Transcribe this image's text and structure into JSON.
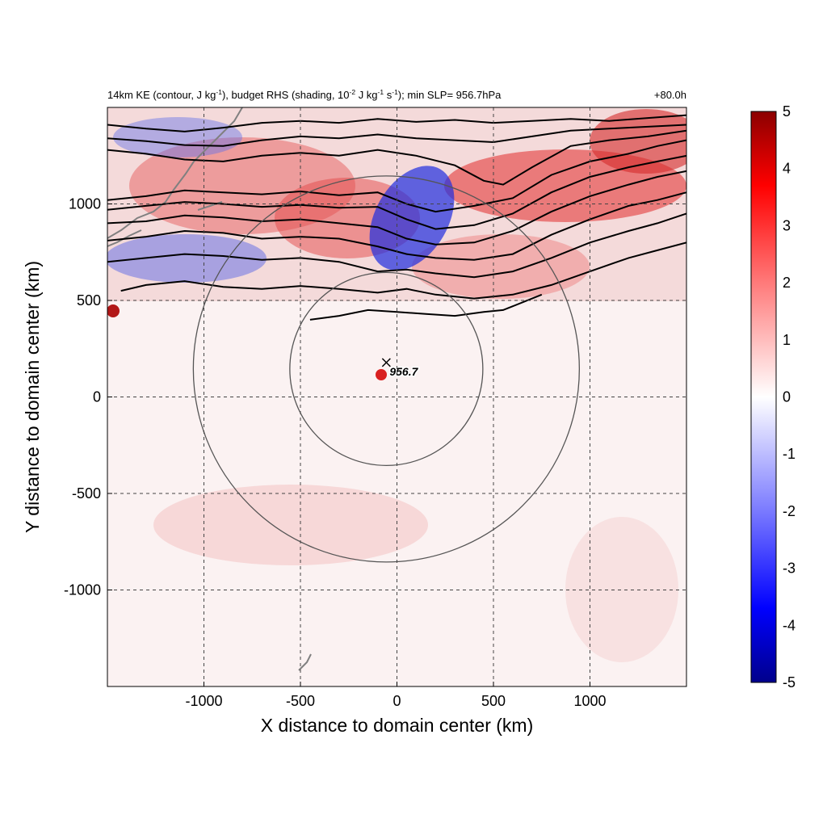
{
  "page": {
    "title": "14km KE contour with kinetic energy budget RHS shading"
  },
  "chart_data": {
    "type": "heatmap",
    "title_parts": [
      {
        "text": "14km KE (contour, J kg",
        "sup": false
      },
      {
        "text": "-1",
        "sup": true
      },
      {
        "text": "), budget RHS (shading, 10",
        "sup": false
      },
      {
        "text": "-2",
        "sup": true
      },
      {
        "text": " J kg",
        "sup": false
      },
      {
        "text": "-1",
        "sup": true
      },
      {
        "text": " s",
        "sup": false
      },
      {
        "text": "-1",
        "sup": true
      },
      {
        "text": "); min SLP= 956.7hPa",
        "sup": false
      }
    ],
    "time_label": "+80.0h",
    "xlabel": "X distance to domain center (km)",
    "ylabel": "Y distance to domain center (km)",
    "xlim": [
      -1500,
      1500
    ],
    "ylim": [
      -1500,
      1500
    ],
    "xticks": [
      -1000,
      -500,
      0,
      500,
      1000
    ],
    "yticks": [
      -1000,
      -500,
      0,
      500,
      1000
    ],
    "grid": true,
    "colorbar": {
      "range": [
        -5,
        5
      ],
      "ticks": [
        5,
        4,
        3,
        2,
        1,
        0,
        -1,
        -2,
        -3,
        -4,
        -5
      ],
      "colors": [
        "#00008b",
        "#0000ff",
        "#ffffff",
        "#ff0000",
        "#8b0000"
      ]
    },
    "storm_center": {
      "x": -55,
      "y": 145,
      "min_slp_label": "956.7"
    },
    "range_rings_km": [
      500,
      1000
    ],
    "ke_contours": [
      {
        "points": [
          [
            -1500,
            1410
          ],
          [
            -1300,
            1390
          ],
          [
            -1100,
            1375
          ],
          [
            -900,
            1395
          ],
          [
            -700,
            1420
          ],
          [
            -500,
            1430
          ],
          [
            -300,
            1420
          ],
          [
            -100,
            1440
          ],
          [
            100,
            1425
          ],
          [
            300,
            1435
          ],
          [
            500,
            1420
          ],
          [
            700,
            1430
          ],
          [
            900,
            1440
          ],
          [
            1100,
            1430
          ],
          [
            1300,
            1445
          ],
          [
            1500,
            1460
          ]
        ]
      },
      {
        "points": [
          [
            -1500,
            1340
          ],
          [
            -1300,
            1325
          ],
          [
            -1100,
            1305
          ],
          [
            -900,
            1300
          ],
          [
            -700,
            1330
          ],
          [
            -500,
            1350
          ],
          [
            -300,
            1340
          ],
          [
            -100,
            1360
          ],
          [
            100,
            1340
          ],
          [
            300,
            1330
          ],
          [
            500,
            1320
          ],
          [
            700,
            1350
          ],
          [
            900,
            1380
          ],
          [
            1100,
            1390
          ],
          [
            1300,
            1400
          ],
          [
            1500,
            1410
          ]
        ]
      },
      {
        "points": [
          [
            -1500,
            1280
          ],
          [
            -1300,
            1260
          ],
          [
            -1100,
            1230
          ],
          [
            -900,
            1220
          ],
          [
            -700,
            1250
          ],
          [
            -500,
            1265
          ],
          [
            -300,
            1250
          ],
          [
            -100,
            1280
          ],
          [
            100,
            1250
          ],
          [
            300,
            1200
          ],
          [
            450,
            1120
          ],
          [
            550,
            1100
          ],
          [
            700,
            1190
          ],
          [
            900,
            1300
          ],
          [
            1100,
            1330
          ],
          [
            1300,
            1350
          ],
          [
            1500,
            1380
          ]
        ]
      },
      {
        "points": [
          [
            -1500,
            1020
          ],
          [
            -1300,
            1040
          ],
          [
            -1100,
            1070
          ],
          [
            -900,
            1060
          ],
          [
            -700,
            1050
          ],
          [
            -500,
            1065
          ],
          [
            -300,
            1045
          ],
          [
            -100,
            1060
          ],
          [
            50,
            1000
          ],
          [
            200,
            960
          ],
          [
            400,
            990
          ],
          [
            600,
            1030
          ],
          [
            800,
            1150
          ],
          [
            1000,
            1220
          ],
          [
            1200,
            1260
          ],
          [
            1350,
            1300
          ],
          [
            1500,
            1330
          ]
        ]
      },
      {
        "points": [
          [
            -1500,
            970
          ],
          [
            -1300,
            990
          ],
          [
            -1100,
            1010
          ],
          [
            -900,
            1000
          ],
          [
            -700,
            985
          ],
          [
            -500,
            995
          ],
          [
            -300,
            980
          ],
          [
            -100,
            985
          ],
          [
            50,
            920
          ],
          [
            200,
            870
          ],
          [
            400,
            890
          ],
          [
            600,
            950
          ],
          [
            800,
            1060
          ],
          [
            1000,
            1140
          ],
          [
            1200,
            1190
          ],
          [
            1350,
            1220
          ],
          [
            1500,
            1250
          ]
        ]
      },
      {
        "points": [
          [
            -1500,
            900
          ],
          [
            -1300,
            910
          ],
          [
            -1100,
            940
          ],
          [
            -900,
            930
          ],
          [
            -700,
            910
          ],
          [
            -500,
            920
          ],
          [
            -300,
            900
          ],
          [
            -100,
            880
          ],
          [
            50,
            820
          ],
          [
            200,
            790
          ],
          [
            400,
            800
          ],
          [
            600,
            860
          ],
          [
            800,
            960
          ],
          [
            1000,
            1040
          ],
          [
            1200,
            1100
          ],
          [
            1350,
            1140
          ],
          [
            1500,
            1170
          ]
        ]
      },
      {
        "points": [
          [
            -1500,
            810
          ],
          [
            -1300,
            830
          ],
          [
            -1100,
            860
          ],
          [
            -900,
            850
          ],
          [
            -700,
            820
          ],
          [
            -500,
            830
          ],
          [
            -300,
            820
          ],
          [
            -100,
            780
          ],
          [
            50,
            740
          ],
          [
            200,
            720
          ],
          [
            400,
            710
          ],
          [
            600,
            740
          ],
          [
            800,
            840
          ],
          [
            1000,
            920
          ],
          [
            1200,
            990
          ],
          [
            1350,
            1020
          ],
          [
            1500,
            1060
          ]
        ]
      },
      {
        "points": [
          [
            -1500,
            700
          ],
          [
            -1300,
            720
          ],
          [
            -1100,
            740
          ],
          [
            -900,
            730
          ],
          [
            -700,
            710
          ],
          [
            -500,
            720
          ],
          [
            -300,
            700
          ],
          [
            -100,
            650
          ],
          [
            50,
            660
          ],
          [
            200,
            640
          ],
          [
            400,
            620
          ],
          [
            600,
            650
          ],
          [
            800,
            720
          ],
          [
            1000,
            800
          ],
          [
            1200,
            860
          ],
          [
            1350,
            900
          ],
          [
            1500,
            950
          ]
        ]
      },
      {
        "points": [
          [
            -1430,
            550
          ],
          [
            -1300,
            580
          ],
          [
            -1100,
            600
          ],
          [
            -900,
            570
          ],
          [
            -700,
            560
          ],
          [
            -500,
            575
          ],
          [
            -300,
            560
          ],
          [
            -100,
            540
          ],
          [
            50,
            560
          ],
          [
            200,
            530
          ],
          [
            400,
            510
          ],
          [
            600,
            530
          ],
          [
            800,
            580
          ],
          [
            1000,
            650
          ],
          [
            1200,
            720
          ],
          [
            1350,
            760
          ],
          [
            1500,
            800
          ]
        ]
      },
      {
        "points": [
          [
            -450,
            400
          ],
          [
            -300,
            420
          ],
          [
            -150,
            450
          ],
          [
            0,
            440
          ],
          [
            150,
            430
          ],
          [
            300,
            420
          ],
          [
            450,
            440
          ],
          [
            550,
            450
          ],
          [
            600,
            470
          ],
          [
            750,
            530
          ]
        ]
      }
    ]
  }
}
